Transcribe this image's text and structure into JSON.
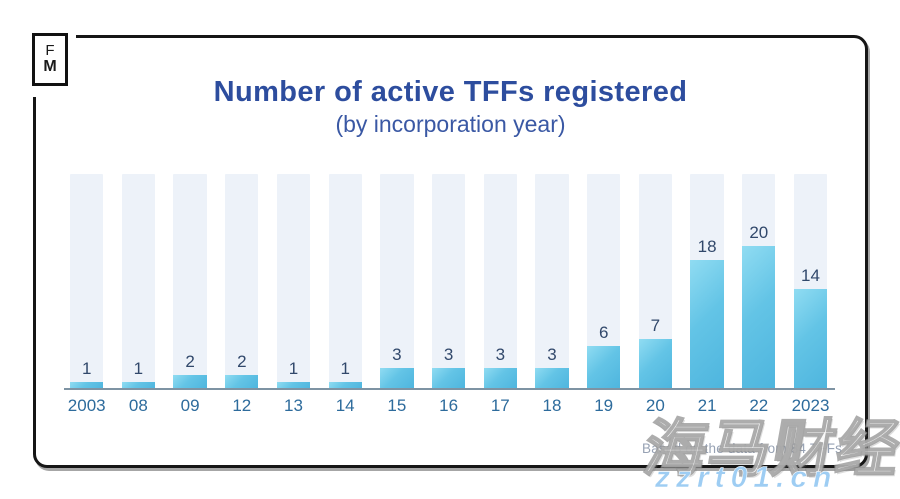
{
  "logo": {
    "line1": "F",
    "line2": "M"
  },
  "header": {
    "title": "Number of active TFFs registered",
    "subtitle": "(by incorporation year)"
  },
  "chart_data": {
    "type": "bar",
    "categories": [
      "2003",
      "08",
      "09",
      "12",
      "13",
      "14",
      "15",
      "16",
      "17",
      "18",
      "19",
      "20",
      "21",
      "22",
      "2023"
    ],
    "values": [
      1,
      1,
      2,
      2,
      1,
      1,
      3,
      3,
      3,
      3,
      6,
      7,
      18,
      20,
      14
    ],
    "title": "Number of active TFFs registered",
    "subtitle": "(by incorporation year)",
    "xlabel": "",
    "ylabel": "",
    "ylim": [
      0,
      30
    ],
    "grid": false,
    "legend": "none",
    "value_labels": true,
    "track_color": "#edf2f9",
    "bar_color_top": "#90dcf2",
    "bar_color_bottom": "#4eb5de",
    "axis_color": "#7e93a3",
    "value_label_color": "#31486b",
    "tick_label_color": "#2d6b9c"
  },
  "footnote": {
    "text": "Based on the data from 84 TFFs"
  },
  "watermark": {
    "cjk": "海马财经",
    "url": "zzrt01.cn"
  },
  "colors": {
    "title": "#2d4d9e",
    "subtitle": "#3a58a4",
    "card_border": "#161616",
    "watermark_url": "#9ecdf3"
  }
}
